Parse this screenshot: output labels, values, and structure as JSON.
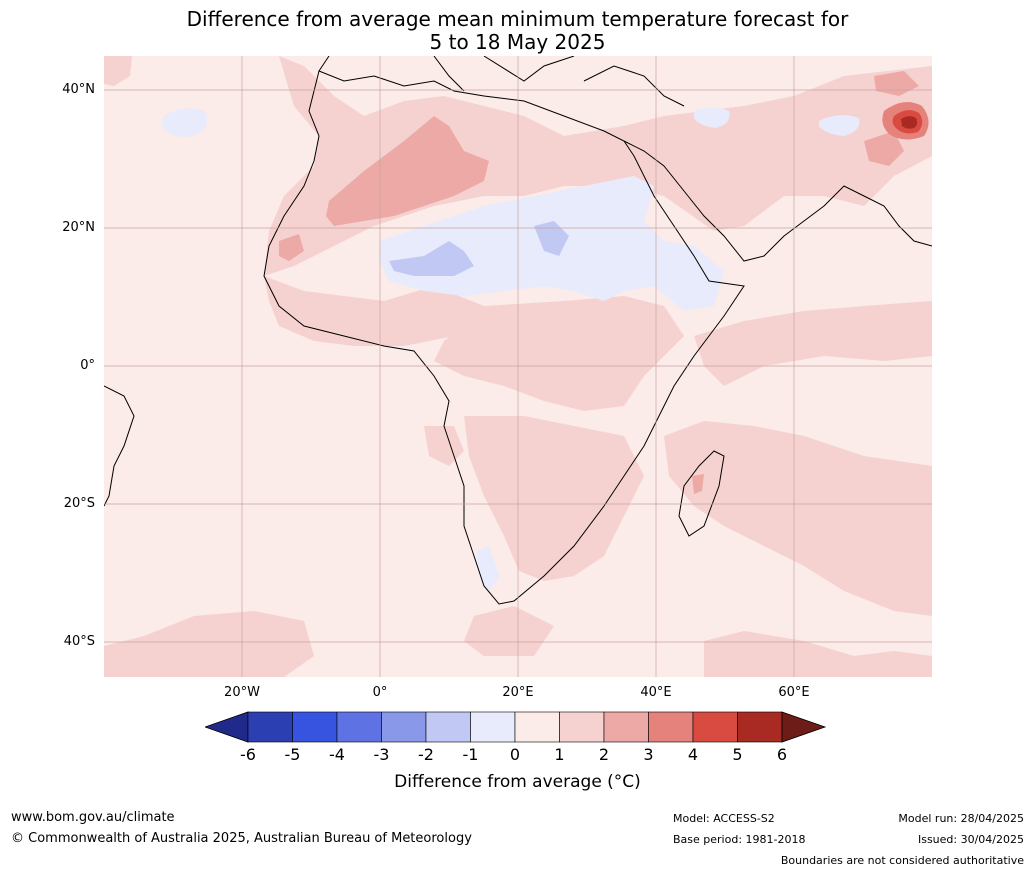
{
  "title": {
    "line1": "Difference from average mean minimum temperature forecast for",
    "line2": "5 to 18 May 2025"
  },
  "map": {
    "lat_labels": [
      "40°N",
      "20°N",
      "0°",
      "20°S",
      "40°S"
    ],
    "lon_labels": [
      "20°W",
      "0°",
      "20°E",
      "40°E",
      "60°E"
    ],
    "background_color": "#fbebe9",
    "land_anomaly_color": "#f5d2d0",
    "hot_color": "#eca9a6",
    "cool_color": "#e8ebfb",
    "cooler_color": "#c1c8f3"
  },
  "colorbar": {
    "ticks": [
      "-6",
      "-5",
      "-4",
      "-3",
      "-2",
      "-1",
      "0",
      "1",
      "2",
      "3",
      "4",
      "5",
      "6"
    ],
    "colors": [
      "#1f2a8a",
      "#2b3fb3",
      "#3754e0",
      "#5e72e3",
      "#8a98ea",
      "#c1c8f3",
      "#e8ebfb",
      "#fbebe9",
      "#f5d2d0",
      "#eca9a6",
      "#e6827c",
      "#d94a40",
      "#a82a22",
      "#6e1c18"
    ],
    "label": "Difference from average (°C)"
  },
  "footer": {
    "website": "www.bom.gov.au/climate",
    "copyright": "© Commonwealth of Australia 2025, Australian Bureau of Meteorology",
    "model": "Model: ACCESS-S2",
    "base_period": "Base period: 1981-2018",
    "model_run": "Model run: 28/04/2025",
    "issued": "Issued: 30/04/2025",
    "disclaimer": "Boundaries are not considered authoritative"
  }
}
